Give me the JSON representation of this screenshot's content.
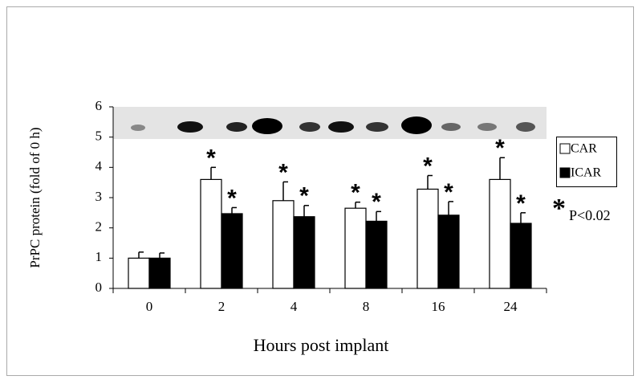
{
  "chart_data": {
    "type": "bar",
    "y_label": "PrPC protein (fold of 0 h)",
    "x_label": "Hours post implant",
    "categories": [
      "0",
      "2",
      "4",
      "8",
      "16",
      "24"
    ],
    "series": [
      {
        "name": "CAR",
        "color": "#ffffff",
        "values": [
          1.0,
          3.6,
          2.9,
          2.65,
          3.28,
          3.6
        ],
        "errors": [
          0.2,
          0.4,
          0.62,
          0.2,
          0.45,
          0.72
        ],
        "significance": [
          null,
          "*",
          "*",
          "*",
          "*",
          "*"
        ]
      },
      {
        "name": "ICAR",
        "color": "#000000",
        "values": [
          1.0,
          2.47,
          2.37,
          2.22,
          2.42,
          2.15
        ],
        "errors": [
          0.17,
          0.2,
          0.37,
          0.32,
          0.45,
          0.35
        ],
        "significance": [
          null,
          "*",
          "*",
          "*",
          "*",
          "*"
        ]
      }
    ],
    "note_symbol": "*",
    "note": "P<0.02",
    "ylim": [
      0,
      6
    ],
    "yticks": [
      0,
      1,
      2,
      3,
      4,
      5,
      6
    ]
  }
}
